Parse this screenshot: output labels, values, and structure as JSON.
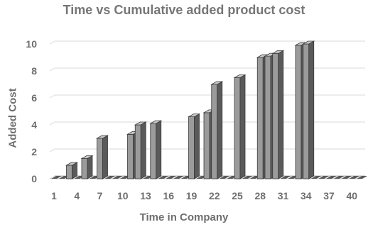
{
  "chart_data": {
    "type": "bar",
    "title": "Time vs Cumulative added product cost",
    "xlabel": "Time in Company",
    "ylabel": "Added Cost",
    "ylim": [
      0,
      10
    ],
    "yticks": [
      0,
      2,
      4,
      6,
      8,
      10
    ],
    "categories": [
      1,
      2,
      3,
      4,
      5,
      6,
      7,
      8,
      9,
      10,
      11,
      12,
      13,
      14,
      15,
      16,
      17,
      18,
      19,
      20,
      21,
      22,
      23,
      24,
      25,
      26,
      27,
      28,
      29,
      30,
      31,
      32,
      33,
      34,
      35,
      36,
      37,
      38,
      39,
      40,
      41
    ],
    "xtick_labels": [
      "1",
      "4",
      "7",
      "10",
      "13",
      "16",
      "19",
      "22",
      "25",
      "28",
      "31",
      "34",
      "37",
      "40"
    ],
    "values": [
      0,
      0,
      1,
      0,
      1.5,
      0,
      3,
      0,
      0,
      0,
      3.3,
      4,
      0,
      4.1,
      0,
      0,
      0,
      0,
      4.6,
      0,
      4.9,
      7,
      0,
      0,
      7.5,
      0,
      0,
      9,
      9.1,
      9.3,
      0,
      0,
      9.9,
      10,
      0,
      0,
      0,
      0,
      0,
      0,
      0
    ],
    "grid": true,
    "bar_color": "#9b9b9b",
    "bar_side_color": "#5a5a5a",
    "bar_top_color": "#c8c8c8",
    "gridline_color": "#d9d9d9",
    "axis_color": "#c8c8c8"
  }
}
